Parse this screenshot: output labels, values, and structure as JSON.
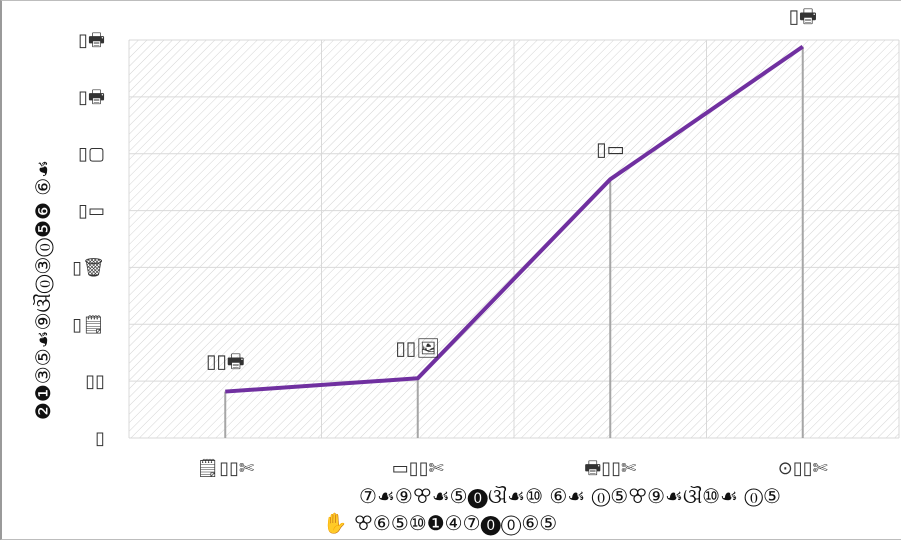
{
  "chart_data": {
    "type": "line",
    "title": "",
    "xlabel": "⑦☙⑨ꕢ☙⑤⓿ଔ☙⑩ ⑥☙ ⓪⑤ꕢ⑨☙ଔ⑩☙ ⓪⑤",
    "xlabel_line2": "✋ ꕢ⑥⑤⑩❶④⑦⓿⓪⑥⑤",
    "ylabel": "❷❶③⑤☙⑨ଔ⓪③⓪❺❻ ⑥☙",
    "categories": [
      "🗒▯▯✄",
      "▭▯▯✄",
      "🖶▯▯✄",
      "⊙▯▯✄"
    ],
    "y_ticks": [
      "▯",
      "▯▯",
      "▯🗒",
      "▯🗑",
      "▯▭",
      "▯▢",
      "▯🖶",
      "▯🖶"
    ],
    "ylim": [
      0,
      6
    ],
    "grid": true,
    "series": [
      {
        "values": [
          0.7,
          0.9,
          3.9,
          5.9
        ],
        "labels": [
          "▯▯🖶",
          "▯▯🖼",
          "▯▭",
          "▯🖶"
        ],
        "color": "#7030a0"
      }
    ],
    "colors": {
      "line": "#7030a0",
      "grid": "#d9d9d9",
      "hatch": "#d4d4d4",
      "drop": "#a6a6a6"
    }
  }
}
